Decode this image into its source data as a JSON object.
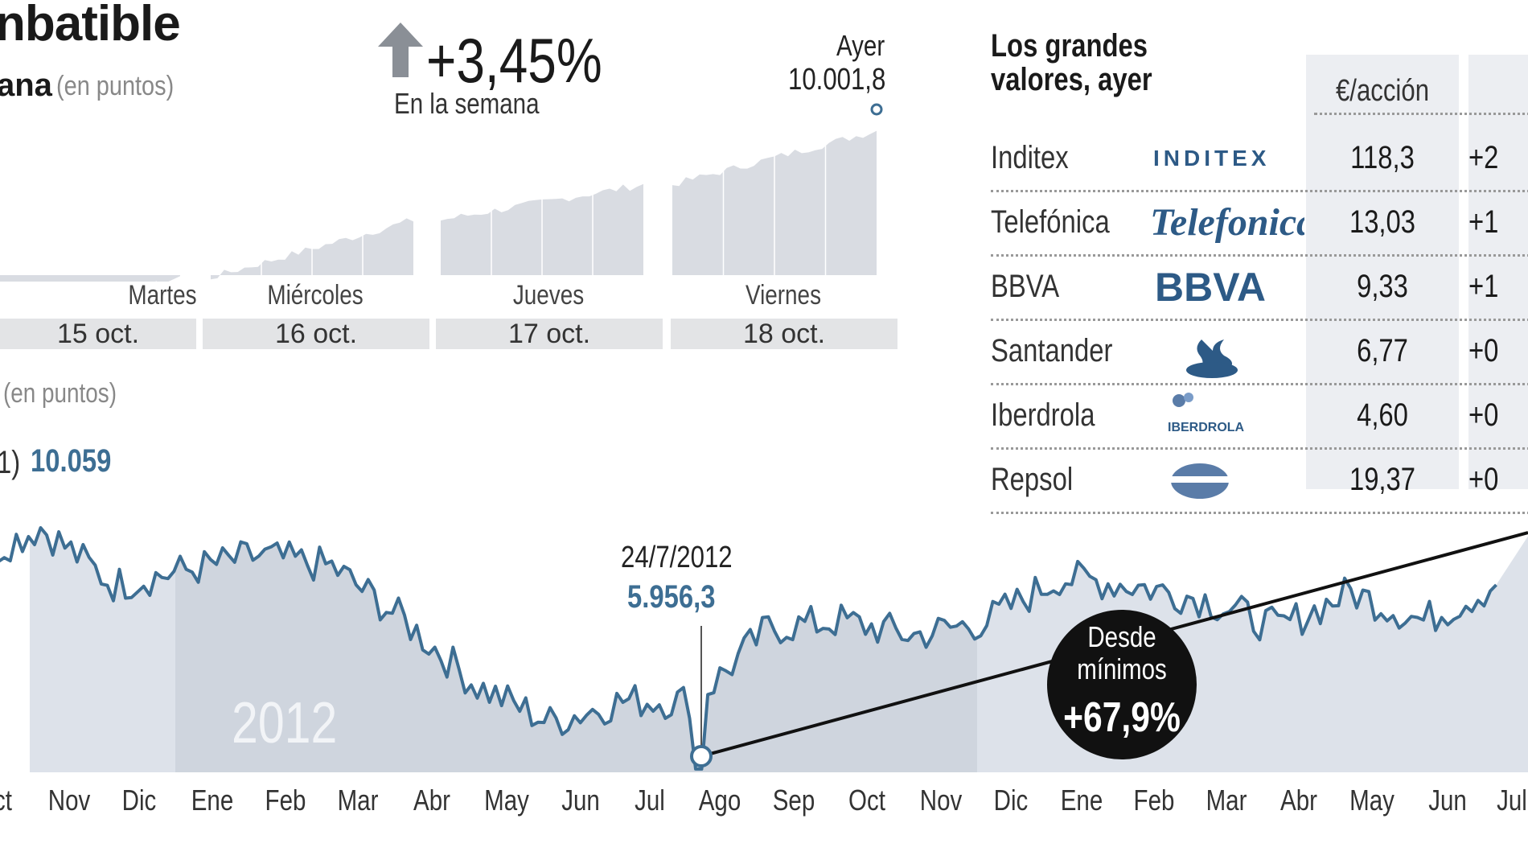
{
  "header": {
    "title": "nbatible",
    "subtitle": "ana",
    "subtitle_unit": "(en puntos)",
    "week_change": "+3,45%",
    "week_label": "En la semana",
    "ayer_label": "Ayer",
    "ayer_value": "10.001,8"
  },
  "intraday": {
    "days": [
      {
        "name": "Martes",
        "date": "15 oct."
      },
      {
        "name": "Miércoles",
        "date": "16 oct."
      },
      {
        "name": "Jueves",
        "date": "17 oct."
      },
      {
        "name": "Viernes",
        "date": "18 oct."
      }
    ]
  },
  "long_chart": {
    "unit": "(en puntos)",
    "ref_prefix": "1)",
    "ref_value": "10.059",
    "min_date": "24/7/2012",
    "min_value": "5.956,3",
    "badge_line1": "Desde",
    "badge_line2": "mínimos",
    "badge_value": "+67,9%",
    "year_label": "2012"
  },
  "table": {
    "title_line1": "Los grandes",
    "title_line2": "valores, ayer",
    "price_header": "€/acción",
    "rows": [
      {
        "name": "Inditex",
        "logo": "INDITEX",
        "price": "118,3",
        "change": "+2"
      },
      {
        "name": "Telefónica",
        "logo": "Telefonica",
        "price": "13,03",
        "change": "+1"
      },
      {
        "name": "BBVA",
        "logo": "BBVA",
        "price": "9,33",
        "change": "+1"
      },
      {
        "name": "Santander",
        "logo": "santander-flame-icon",
        "price": "6,77",
        "change": "+0"
      },
      {
        "name": "Iberdrola",
        "logo": "IBERDROLA",
        "price": "4,60",
        "change": "+0"
      },
      {
        "name": "Repsol",
        "logo": "repsol-icon",
        "price": "19,37",
        "change": "+0"
      }
    ]
  },
  "colors": {
    "fill": "#cfd5de",
    "fill_dark": "#b3bdca",
    "line": "#3d6e93",
    "accent_text": "#3d6e93",
    "intraday_fill": "#d9dce2"
  },
  "chart_data": [
    {
      "type": "area",
      "x": [
        "Martes 15 oct.",
        "Miércoles 16 oct.",
        "Jueves 17 oct.",
        "Viernes 18 oct."
      ],
      "series": [
        {
          "values": [
            9670,
            9800,
            9880,
            10001.8
          ]
        }
      ]
    },
    {
      "type": "line",
      "x": [
        "Oct",
        "Nov",
        "Dic",
        "Ene",
        "Feb",
        "Mar",
        "Abr",
        "May",
        "Jun",
        "Jul",
        "Ago",
        "Sep",
        "Oct",
        "Nov",
        "Dic",
        "Ene",
        "Feb",
        "Mar",
        "Abr",
        "May",
        "Jun",
        "Jul"
      ],
      "series": [
        {
          "values": [
            8800,
            9300,
            8500,
            8700,
            8900,
            8750,
            8000,
            7100,
            6600,
            6900,
            6900,
            7900,
            8000,
            7800,
            8000,
            8600,
            8500,
            8300,
            7900,
            8400,
            8000,
            8500
          ]
        }
      ],
      "annotations": [
        {
          "x": "24/7/2012",
          "y": 5956.3,
          "label": "5.956,3"
        }
      ]
    }
  ]
}
